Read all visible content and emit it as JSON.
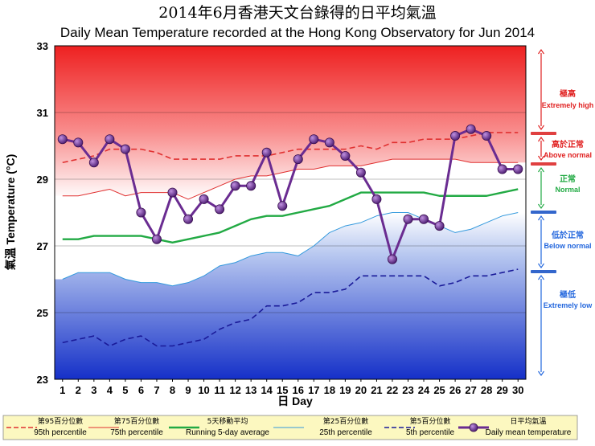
{
  "chart_data": {
    "type": "line",
    "title_zh": "2014年6月香港天文台錄得的日平均氣溫",
    "title": "Daily Mean Temperature recorded at the Hong Kong Observatory for Jun 2014",
    "xlabel": "日 Day",
    "ylabel": "氣溫 Temperature (°C)",
    "ylim": [
      23,
      33
    ],
    "yticks": [
      23,
      25,
      27,
      29,
      31,
      33
    ],
    "x": [
      1,
      2,
      3,
      4,
      5,
      6,
      7,
      8,
      9,
      10,
      11,
      12,
      13,
      14,
      15,
      16,
      17,
      18,
      19,
      20,
      21,
      22,
      23,
      24,
      25,
      26,
      27,
      28,
      29,
      30
    ],
    "series": [
      {
        "key": "p95",
        "values": [
          29.5,
          29.6,
          29.7,
          29.9,
          29.9,
          29.9,
          29.8,
          29.6,
          29.6,
          29.6,
          29.6,
          29.7,
          29.7,
          29.7,
          29.8,
          29.9,
          29.9,
          29.9,
          29.9,
          30.0,
          29.9,
          30.1,
          30.1,
          30.2,
          30.2,
          30.2,
          30.3,
          30.4,
          30.4,
          30.4
        ]
      },
      {
        "key": "p75",
        "values": [
          28.5,
          28.5,
          28.6,
          28.7,
          28.5,
          28.6,
          28.6,
          28.6,
          28.4,
          28.6,
          28.8,
          29.0,
          29.1,
          29.1,
          29.2,
          29.3,
          29.3,
          29.4,
          29.4,
          29.4,
          29.5,
          29.6,
          29.6,
          29.6,
          29.6,
          29.6,
          29.5,
          29.5,
          29.5,
          29.5
        ]
      },
      {
        "key": "avg5",
        "values": [
          27.2,
          27.2,
          27.3,
          27.3,
          27.3,
          27.3,
          27.2,
          27.1,
          27.2,
          27.3,
          27.4,
          27.6,
          27.8,
          27.9,
          27.9,
          28.0,
          28.1,
          28.2,
          28.4,
          28.6,
          28.6,
          28.6,
          28.6,
          28.6,
          28.5,
          28.5,
          28.5,
          28.5,
          28.6,
          28.7
        ]
      },
      {
        "key": "p25",
        "values": [
          26.0,
          26.2,
          26.2,
          26.2,
          26.0,
          25.9,
          25.9,
          25.8,
          25.9,
          26.1,
          26.4,
          26.5,
          26.7,
          26.8,
          26.8,
          26.7,
          27.0,
          27.4,
          27.6,
          27.7,
          27.9,
          28.0,
          28.0,
          27.8,
          27.6,
          27.4,
          27.5,
          27.7,
          27.9,
          28.0
        ]
      },
      {
        "key": "p5",
        "values": [
          24.1,
          24.2,
          24.3,
          24.0,
          24.2,
          24.3,
          24.0,
          24.0,
          24.1,
          24.2,
          24.5,
          24.7,
          24.8,
          25.2,
          25.2,
          25.3,
          25.6,
          25.6,
          25.7,
          26.1,
          26.1,
          26.1,
          26.1,
          26.1,
          25.8,
          25.9,
          26.1,
          26.1,
          26.2,
          26.3
        ]
      },
      {
        "key": "daily",
        "values": [
          30.2,
          30.1,
          29.5,
          30.2,
          29.9,
          28.0,
          27.2,
          28.6,
          27.8,
          28.4,
          28.1,
          28.8,
          28.8,
          29.8,
          28.2,
          29.6,
          30.2,
          30.1,
          29.7,
          29.2,
          28.4,
          26.6,
          27.8,
          27.8,
          27.6,
          30.3,
          30.5,
          30.3,
          29.3,
          29.3
        ]
      }
    ],
    "legend": [
      {
        "key": "p95",
        "zh": "第95百分位數",
        "en": "95th percentile",
        "color": "#e03030",
        "style": "dashed"
      },
      {
        "key": "p75",
        "zh": "第75百分位數",
        "en": "75th percentile",
        "color": "#e03030",
        "style": "solid-thin"
      },
      {
        "key": "avg5",
        "zh": "5天移動平均",
        "en": "Running 5-day average",
        "color": "#22aa44",
        "style": "solid"
      },
      {
        "key": "p25",
        "zh": "第25百分位數",
        "en": "25th percentile",
        "color": "#3399dd",
        "style": "solid-thin"
      },
      {
        "key": "p5",
        "zh": "第5百分位數",
        "en": "5th percentile",
        "color": "#1a1a99",
        "style": "dashed"
      },
      {
        "key": "daily",
        "zh": "日平均氣溫",
        "en": "Daily mean temperature",
        "color": "#6a2c91",
        "style": "line-marker"
      }
    ],
    "categories_right": [
      {
        "zh": "極高",
        "en": "Extremely high",
        "color": "#e02020"
      },
      {
        "zh": "高於正常",
        "en": "Above normal",
        "color": "#e02020"
      },
      {
        "zh": "正常",
        "en": "Normal",
        "color": "#22aa44"
      },
      {
        "zh": "低於正常",
        "en": "Below normal",
        "color": "#2266dd"
      },
      {
        "zh": "極低",
        "en": "Extremely low",
        "color": "#2266dd"
      }
    ]
  }
}
